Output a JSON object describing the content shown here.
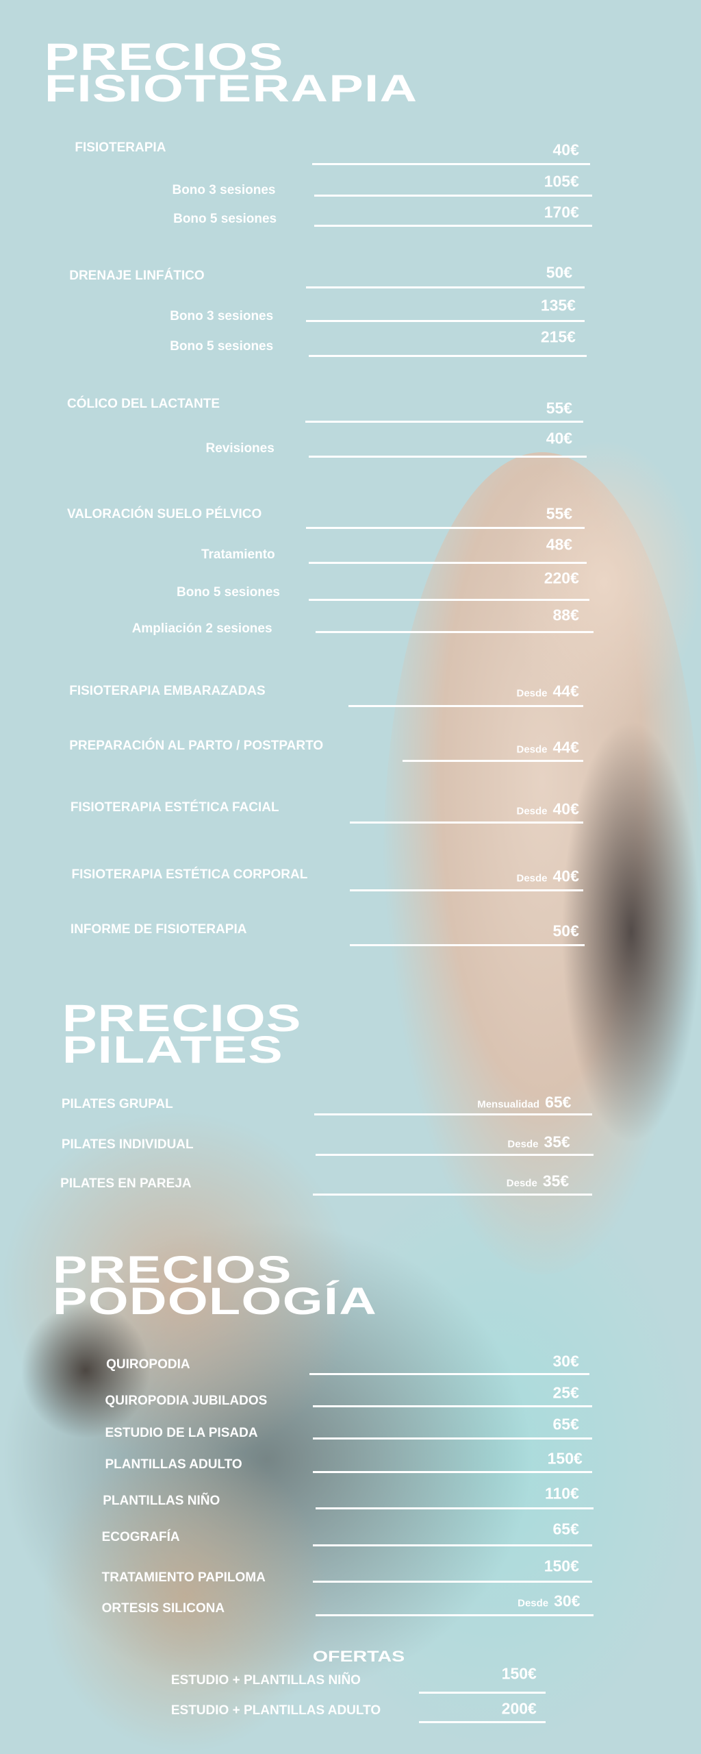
{
  "fisioterapia": {
    "title_line1": "PRECIOS",
    "title_line2": "FISIOTERAPIA",
    "items": [
      {
        "label": "FISIOTERAPIA",
        "price": "40€",
        "prefix": ""
      },
      {
        "label": "Bono 3 sesiones",
        "price": "105€",
        "prefix": ""
      },
      {
        "label": "Bono 5 sesiones",
        "price": "170€",
        "prefix": ""
      },
      {
        "label": "DRENAJE LINFÁTICO",
        "price": "50€",
        "prefix": ""
      },
      {
        "label": "Bono 3 sesiones",
        "price": "135€",
        "prefix": ""
      },
      {
        "label": "Bono 5 sesiones",
        "price": "215€",
        "prefix": ""
      },
      {
        "label": "CÓLICO DEL LACTANTE",
        "price": "55€",
        "prefix": ""
      },
      {
        "label": "Revisiones",
        "price": "40€",
        "prefix": ""
      },
      {
        "label": "VALORACIÓN SUELO PÉLVICO",
        "price": "55€",
        "prefix": ""
      },
      {
        "label": "Tratamiento",
        "price": "48€",
        "prefix": ""
      },
      {
        "label": "Bono 5 sesiones",
        "price": "220€",
        "prefix": ""
      },
      {
        "label": "Ampliación 2 sesiones",
        "price": "88€",
        "prefix": ""
      },
      {
        "label": "FISIOTERAPIA EMBARAZADAS",
        "price": "44€",
        "prefix": "Desde"
      },
      {
        "label": "PREPARACIÓN AL PARTO / POSTPARTO",
        "price": "44€",
        "prefix": "Desde"
      },
      {
        "label": "FISIOTERAPIA ESTÉTICA FACIAL",
        "price": "40€",
        "prefix": "Desde"
      },
      {
        "label": "FISIOTERAPIA ESTÉTICA CORPORAL",
        "price": "40€",
        "prefix": "Desde"
      },
      {
        "label": "INFORME DE FISIOTERAPIA",
        "price": "50€",
        "prefix": ""
      }
    ]
  },
  "pilates": {
    "title_line1": "PRECIOS",
    "title_line2": "PILATES",
    "items": [
      {
        "label": "PILATES GRUPAL",
        "price": "65€",
        "prefix": "Mensualidad"
      },
      {
        "label": "PILATES INDIVIDUAL",
        "price": "35€",
        "prefix": "Desde"
      },
      {
        "label": "PILATES EN PAREJA",
        "price": "35€",
        "prefix": "Desde"
      }
    ]
  },
  "podologia": {
    "title_line1": "PRECIOS",
    "title_line2": "PODOLOGÍA",
    "items": [
      {
        "label": "QUIROPODIA",
        "price": "30€",
        "prefix": ""
      },
      {
        "label": "QUIROPODIA JUBILADOS",
        "price": "25€",
        "prefix": ""
      },
      {
        "label": "ESTUDIO DE LA PISADA",
        "price": "65€",
        "prefix": ""
      },
      {
        "label": "PLANTILLAS ADULTO",
        "price": "150€",
        "prefix": ""
      },
      {
        "label": "PLANTILLAS NIÑO",
        "price": "110€",
        "prefix": ""
      },
      {
        "label": "ECOGRAFÍA",
        "price": "65€",
        "prefix": ""
      },
      {
        "label": "TRATAMIENTO PAPILOMA",
        "price": "150€",
        "prefix": ""
      },
      {
        "label": "ORTESIS SILICONA",
        "price": "30€",
        "prefix": "Desde"
      }
    ]
  },
  "ofertas": {
    "title": "OFERTAS",
    "items": [
      {
        "label": "ESTUDIO + PLANTILLAS NIÑO",
        "price": "150€",
        "prefix": ""
      },
      {
        "label": "ESTUDIO + PLANTILLAS ADULTO",
        "price": "200€",
        "prefix": ""
      }
    ]
  }
}
